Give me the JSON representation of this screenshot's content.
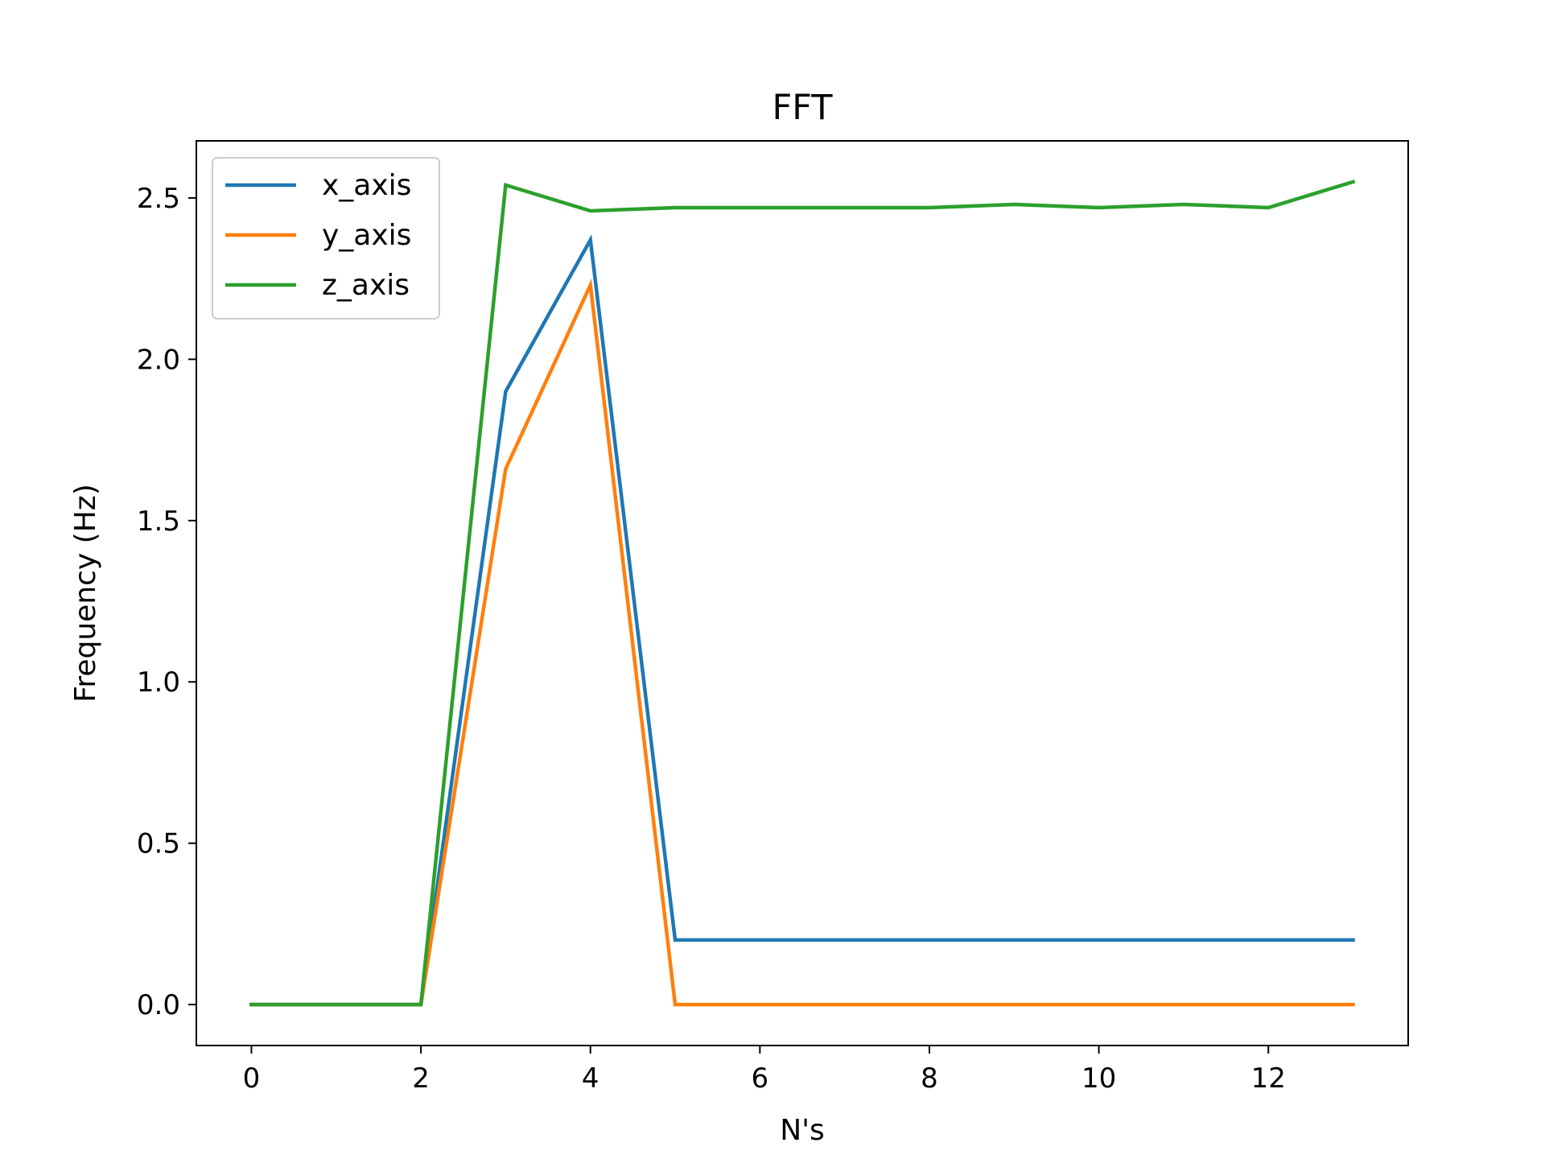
{
  "chart_data": {
    "type": "line",
    "title": "FFT",
    "xlabel": "N's",
    "ylabel": "Frequency (Hz)",
    "xlim": [
      -0.65,
      13.65
    ],
    "ylim": [
      -0.127,
      2.677
    ],
    "xticks": [
      0,
      2,
      4,
      6,
      8,
      10,
      12
    ],
    "xtick_labels": [
      "0",
      "2",
      "4",
      "6",
      "8",
      "10",
      "12"
    ],
    "yticks": [
      0.0,
      0.5,
      1.0,
      1.5,
      2.0,
      2.5
    ],
    "ytick_labels": [
      "0.0",
      "0.5",
      "1.0",
      "1.5",
      "2.0",
      "2.5"
    ],
    "grid": false,
    "legend_position": "upper-left",
    "x": [
      0,
      1,
      2,
      3,
      4,
      5,
      6,
      7,
      8,
      9,
      10,
      11,
      12,
      13
    ],
    "series": [
      {
        "name": "x_axis",
        "color": "#1f77b4",
        "values": [
          0,
          0,
          0,
          1.9,
          2.37,
          0.2,
          0.2,
          0.2,
          0.2,
          0.2,
          0.2,
          0.2,
          0.2,
          0.2
        ]
      },
      {
        "name": "y_axis",
        "color": "#ff7f0e",
        "values": [
          0,
          0,
          0,
          1.66,
          2.23,
          0,
          0,
          0,
          0,
          0,
          0,
          0,
          0,
          0
        ]
      },
      {
        "name": "z_axis",
        "color": "#2ca02c",
        "values": [
          0,
          0,
          0,
          2.54,
          2.46,
          2.47,
          2.47,
          2.47,
          2.47,
          2.48,
          2.47,
          2.48,
          2.47,
          2.55
        ]
      }
    ]
  }
}
